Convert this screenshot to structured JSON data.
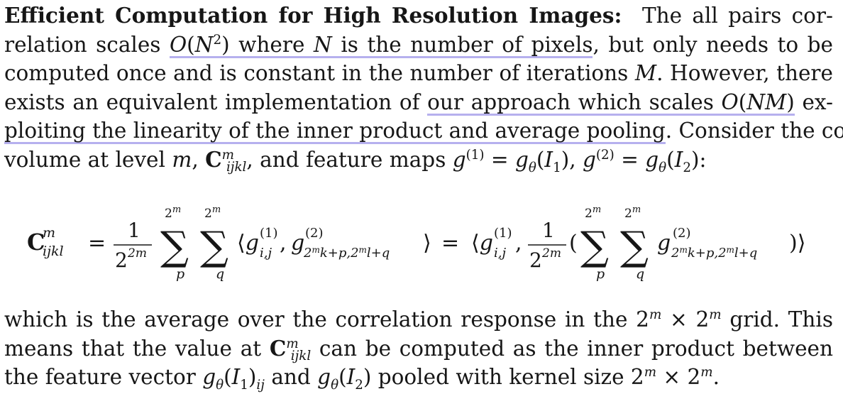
{
  "paragraph1": {
    "heading": "Efficient Computation for High Resolution Images:",
    "line1_rest": "The all pairs cor-",
    "line2_a": "relation scales ",
    "line2_hl": "O(N²) where N is the number of pixels",
    "line2_b": ", but only needs to be",
    "line3": "computed once and is constant in the number of iterations M. However, there",
    "line4_a": "exists an equivalent implementation of ",
    "line4_hl": "our approach which scales O(NM)",
    "line4_b": " ex-",
    "line5_hl": "ploiting the linearity of the inner product and average pooling",
    "line5_b": ". Consider the cost",
    "line6": "volume at level m, Cₘᵢⱼₖₗ, and feature maps g(1) = gθ(I1), g(2) = gθ(I2):"
  },
  "equation": {
    "lhs": "C",
    "lhs_sup": "m",
    "lhs_sub": "ijkl",
    "frac_num": "1",
    "frac_den": "2",
    "frac_den_sup": "2m",
    "sum_upper": "2",
    "sum_upper_sup": "m",
    "sum_index_p": "p",
    "sum_index_q": "q",
    "inner1": "⟨g",
    "g1_sup": "(1)",
    "g1_sub": "i,j",
    "g2_sup": "(2)",
    "g2_sub": "2ᵐk+p,2ᵐl+q",
    "equals": "="
  },
  "paragraph2": {
    "line1": "which is the average over the correlation response in the 2ᵐ × 2ᵐ grid. This",
    "line2": "means that the value at Cᵐᵢⱼₖₗ can be computed as the inner product between",
    "line3": "the feature vector gθ(I1)ij and gθ(I2) pooled with kernel size 2ᵐ × 2ᵐ."
  },
  "highlight_color": "#b6b0ee"
}
